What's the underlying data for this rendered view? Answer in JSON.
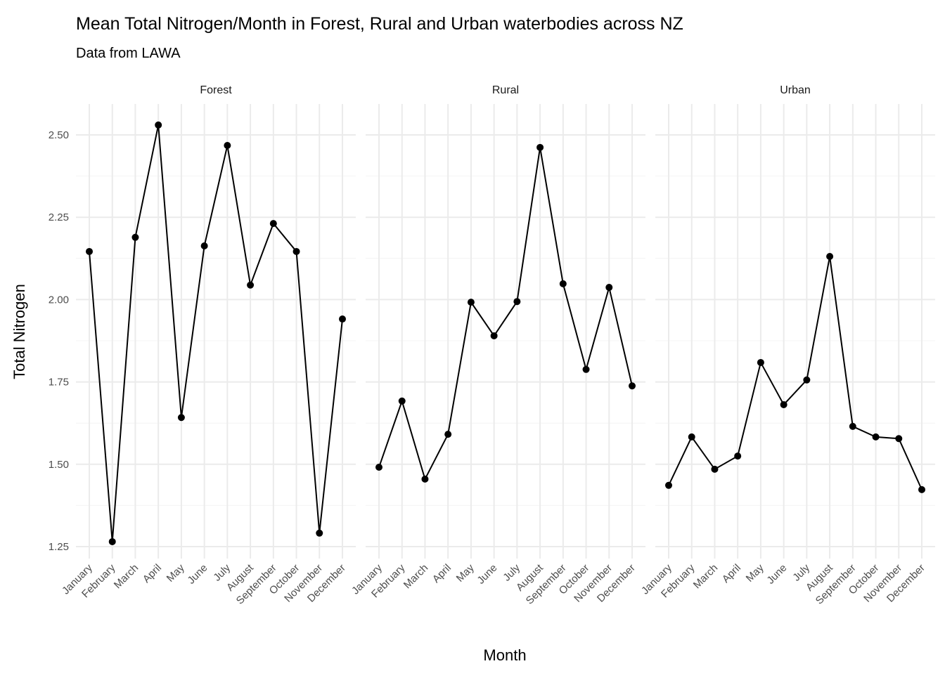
{
  "chart_data": {
    "type": "line",
    "title": "Mean Total Nitrogen/Month in Forest, Rural and Urban waterbodies across NZ",
    "subtitle": "Data from LAWA",
    "xlabel": "Month",
    "ylabel": "Total Nitrogen",
    "ylim": [
      1.22,
      2.58
    ],
    "yticks": [
      1.25,
      1.5,
      1.75,
      2.0,
      2.25,
      2.5
    ],
    "ytick_labels": [
      "1.25",
      "1.50",
      "1.75",
      "2.00",
      "2.25",
      "2.50"
    ],
    "grid": true,
    "categories": [
      "January",
      "February",
      "March",
      "April",
      "May",
      "June",
      "July",
      "August",
      "September",
      "October",
      "November",
      "December"
    ],
    "panels": [
      {
        "name": "Forest",
        "values": [
          2.146,
          1.265,
          2.189,
          2.53,
          1.642,
          2.163,
          2.468,
          2.044,
          2.231,
          2.146,
          1.291,
          1.941
        ]
      },
      {
        "name": "Rural",
        "values": [
          1.491,
          1.692,
          1.455,
          1.591,
          1.992,
          1.89,
          1.994,
          2.462,
          2.048,
          1.788,
          2.037,
          1.738
        ]
      },
      {
        "name": "Urban",
        "values": [
          1.436,
          1.583,
          1.485,
          1.525,
          1.809,
          1.681,
          1.756,
          2.131,
          1.615,
          1.583,
          1.578,
          1.423
        ]
      }
    ],
    "colors": {
      "line": "#000000",
      "grid_major": "#ebebeb",
      "grid_minor": "#f4f4f4",
      "text": "#000000",
      "tick_text": "#4d4d4d"
    }
  }
}
